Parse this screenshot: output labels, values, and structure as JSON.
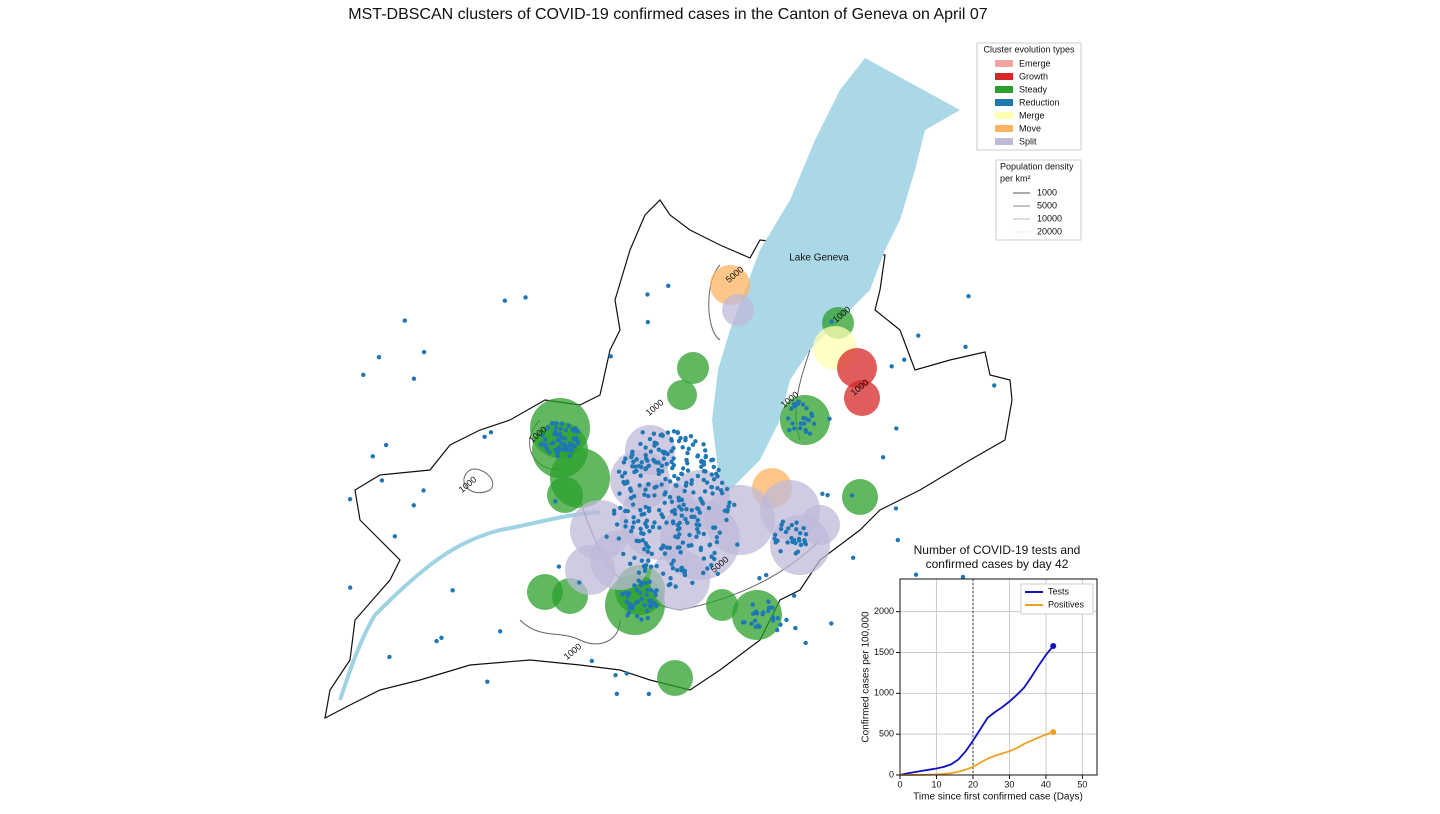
{
  "title": "MST-DBSCAN clusters of COVID-19 confirmed cases in the Canton of Geneva on April 07",
  "map": {
    "lake_label": "Lake Geneva",
    "contour_labels": [
      "5000",
      "1000",
      "1000",
      "1000",
      "1000",
      "1000",
      "1000",
      "5000",
      "1000"
    ]
  },
  "cluster_legend": {
    "title": "Cluster evolution types",
    "items": [
      {
        "name": "Emerge",
        "color": "#f4a3a3"
      },
      {
        "name": "Growth",
        "color": "#d62728"
      },
      {
        "name": "Steady",
        "color": "#2ca02c"
      },
      {
        "name": "Reduction",
        "color": "#1f77b4"
      },
      {
        "name": "Merge",
        "color": "#ffffb3"
      },
      {
        "name": "Move",
        "color": "#fdb462"
      },
      {
        "name": "Split",
        "color": "#bebada"
      }
    ]
  },
  "density_legend": {
    "title_lines": [
      "Population density",
      "per km²"
    ],
    "levels": [
      1000,
      5000,
      10000,
      20000
    ],
    "colors": [
      "#555555",
      "#888888",
      "#bbbbbb",
      "#eeeeee"
    ]
  },
  "chart_data": {
    "type": "line",
    "title": [
      "Number of COVID-19 tests and",
      "confirmed cases by day 42"
    ],
    "x_label": "Time since first confirmed case (Days)",
    "y_label": "Confirmed cases per 100,000",
    "x": [
      0,
      2,
      4,
      6,
      8,
      10,
      12,
      14,
      16,
      18,
      20,
      22,
      24,
      26,
      28,
      30,
      32,
      34,
      36,
      38,
      40,
      42
    ],
    "series": [
      {
        "name": "Tests",
        "color": "#1010c0",
        "values": [
          0,
          20,
          35,
          50,
          65,
          80,
          100,
          130,
          190,
          290,
          420,
          560,
          700,
          770,
          830,
          900,
          980,
          1070,
          1200,
          1340,
          1470,
          1580
        ]
      },
      {
        "name": "Positives",
        "color": "#f0a020",
        "values": [
          0,
          0,
          0,
          2,
          4,
          8,
          14,
          22,
          40,
          65,
          100,
          150,
          200,
          235,
          265,
          290,
          330,
          380,
          420,
          460,
          495,
          525
        ]
      }
    ],
    "vline": 20,
    "xlim": [
      0,
      54
    ],
    "ylim": [
      0,
      2400
    ],
    "xticks": [
      0,
      10,
      20,
      30,
      40,
      50
    ],
    "yticks": [
      0,
      500,
      1000,
      1500,
      2000
    ],
    "grid": true,
    "legend": "upper right"
  }
}
